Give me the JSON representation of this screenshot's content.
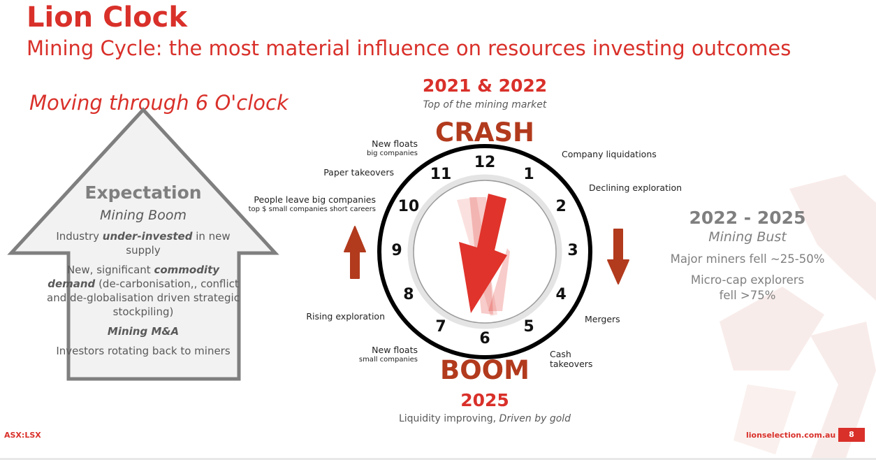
{
  "header": {
    "title": "Lion Clock",
    "subtitle": "Mining Cycle: the most material influence on resources investing outcomes"
  },
  "left_panel": {
    "heading": "Moving through 6 O'clock",
    "box_title": "Expectation",
    "box_subtitle": "Mining Boom",
    "points": [
      {
        "pre": "Industry ",
        "em": "under-invested",
        "post": " in new supply"
      },
      {
        "pre": "New, significant ",
        "em": "commodity demand",
        "post": " (de-carbonisation,, conflict and de-globalisation driven strategic stockpiling)"
      }
    ],
    "ma": "Mining M&A",
    "rotation": "Investors rotating back to miners",
    "box_fill": "#f2f2f2",
    "box_border": "#7f7f7f"
  },
  "clock": {
    "top_year": "2021 & 2022",
    "top_caption": "Top of the mining market",
    "top_word": "CRASH",
    "bottom_word": "BOOM",
    "bottom_year": "2025",
    "bottom_caption_plain": "Liquidity improving, ",
    "bottom_caption_italic": "Driven by gold",
    "numbers": [
      "12",
      "1",
      "2",
      "3",
      "4",
      "5",
      "6",
      "7",
      "8",
      "9",
      "10",
      "11"
    ],
    "hand_color": "#e0332b",
    "arrow_color": "#b23a1d",
    "labels": {
      "new_floats_big": "New floats",
      "new_floats_big_sub": "big companies",
      "company_liquidations": "Company liquidations",
      "paper_takeovers": "Paper takeovers",
      "declining_exploration": "Declining exploration",
      "people_leave": "People leave big companies",
      "people_leave_sub": "top $ small companies short careers",
      "rising_exploration": "Rising exploration",
      "mergers": "Mergers",
      "new_floats_small": "New floats",
      "new_floats_small_sub": "small companies",
      "cash_takeovers": "Cash takeovers"
    }
  },
  "right_panel": {
    "years": "2022 - 2025",
    "phase": "Mining Bust",
    "line1": "Major miners fell ~25-50%",
    "line2": "Micro-cap explorers fell >75%"
  },
  "footer": {
    "ticker": "ASX:LSX",
    "website": "lionselection.com.au",
    "page": "8"
  },
  "colors": {
    "brand_red": "#d9302a"
  }
}
